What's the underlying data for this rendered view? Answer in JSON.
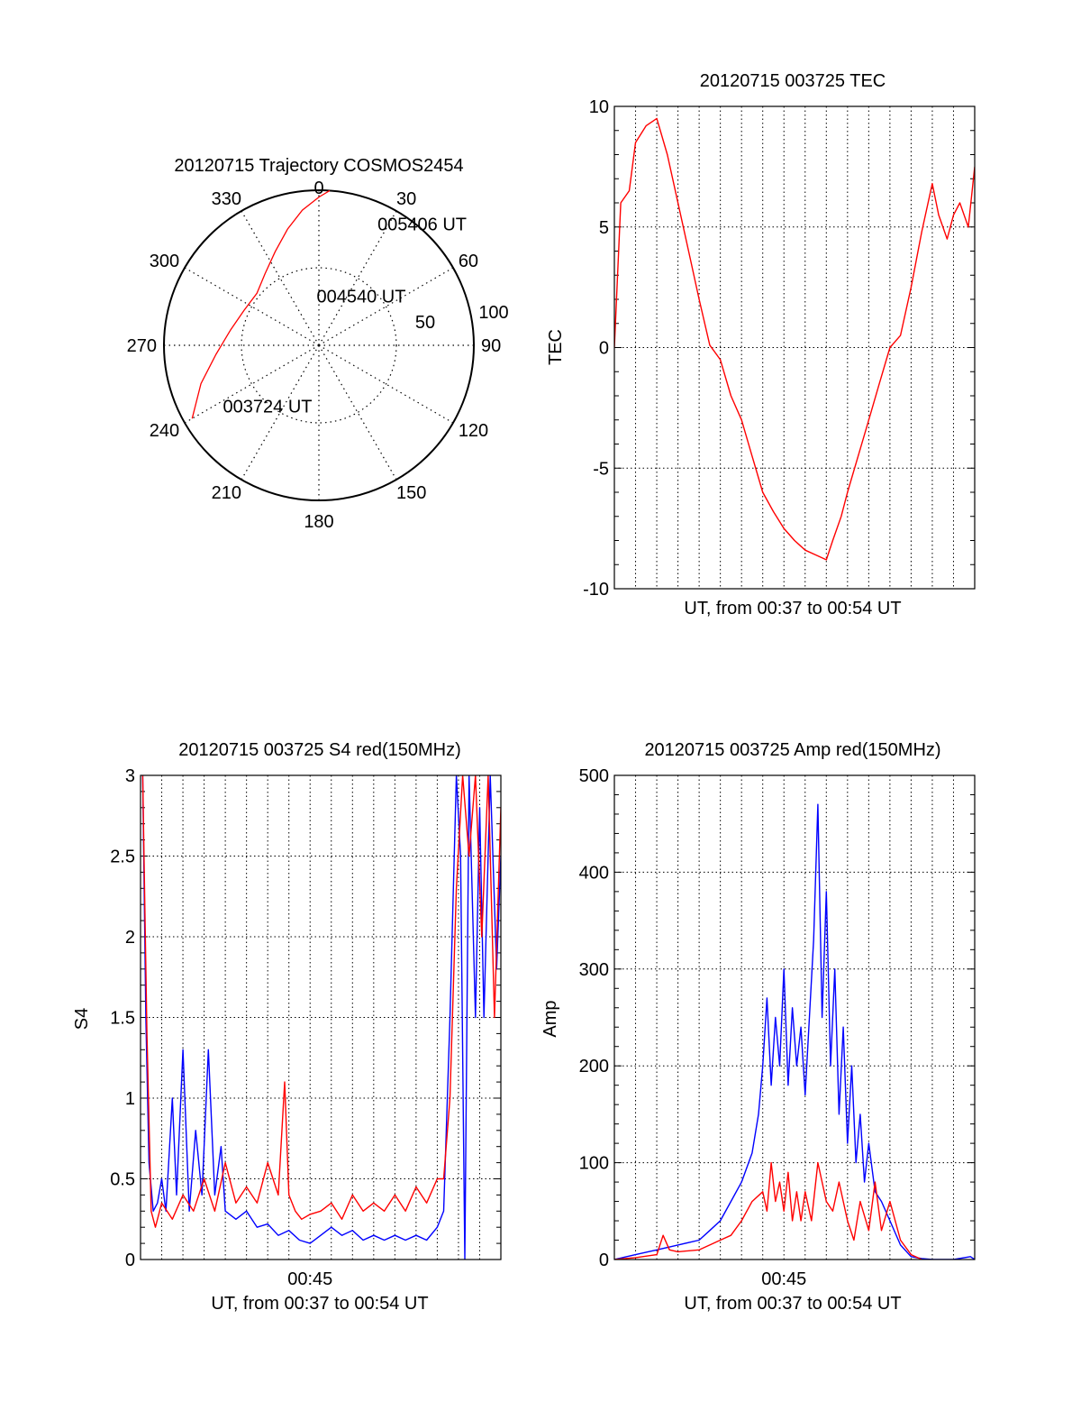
{
  "colors": {
    "red": "#ff0000",
    "blue": "#0000ff",
    "axis": "#000000",
    "grid": "#000000"
  },
  "chart_data": [
    {
      "type": "polar",
      "title": "20120715 Trajectory COSMOS2454",
      "angle_labels": [
        "0",
        "30",
        "60",
        "90",
        "120",
        "150",
        "180",
        "210",
        "240",
        "270",
        "300",
        "330"
      ],
      "radius_labels": [
        "50",
        "100"
      ],
      "rlim": [
        0,
        90
      ],
      "grid": true,
      "series": [
        {
          "color": "red",
          "points": [
            {
              "az": 240,
              "r": 85
            },
            {
              "az": 252,
              "r": 72
            },
            {
              "az": 265,
              "r": 60
            },
            {
              "az": 280,
              "r": 52
            },
            {
              "az": 295,
              "r": 48
            },
            {
              "az": 310,
              "r": 47
            },
            {
              "az": 323,
              "r": 52
            },
            {
              "az": 335,
              "r": 60
            },
            {
              "az": 345,
              "r": 70
            },
            {
              "az": 353,
              "r": 79
            },
            {
              "az": 360,
              "r": 86
            },
            {
              "az": 364,
              "r": 90
            }
          ]
        }
      ],
      "annotations": [
        {
          "text": "005406 UT",
          "az": 27,
          "r": 75
        },
        {
          "text": "004540 UT",
          "az": 357,
          "r": 25
        },
        {
          "text": "003724 UT",
          "az": 235,
          "r": 68
        }
      ]
    },
    {
      "type": "line",
      "title": "20120715 003725 TEC",
      "xlabel": "UT, from 00:37 to 00:54 UT",
      "ylabel": "TEC",
      "xlim": [
        0,
        17
      ],
      "ylim": [
        -10,
        10
      ],
      "yticks": [
        "10",
        "5",
        "0",
        "-5",
        "-10"
      ],
      "xticks": [],
      "grid": true,
      "series": [
        {
          "color": "red",
          "x": [
            0,
            0.3,
            0.7,
            1.0,
            1.5,
            2.0,
            2.5,
            3.0,
            3.5,
            4.0,
            4.5,
            5.0,
            5.5,
            6.0,
            6.5,
            7.0,
            7.5,
            8.0,
            8.5,
            9.0,
            9.5,
            10.0,
            10.3,
            10.7,
            11.0,
            11.5,
            12.0,
            12.5,
            13.0,
            13.5,
            14.0,
            14.5,
            15.0,
            15.3,
            15.7,
            16.0,
            16.3,
            16.7,
            17.0
          ],
          "y": [
            0,
            6.0,
            6.5,
            8.5,
            9.2,
            9.5,
            8.0,
            6.0,
            4.0,
            2.0,
            0.1,
            -0.5,
            -2.0,
            -3.0,
            -4.5,
            -6.0,
            -6.8,
            -7.5,
            -8.0,
            -8.4,
            -8.6,
            -8.8,
            -8.0,
            -7.0,
            -6.0,
            -4.5,
            -3.0,
            -1.5,
            0.0,
            0.5,
            2.5,
            4.8,
            6.8,
            5.5,
            4.5,
            5.5,
            6.0,
            5.0,
            7.5
          ]
        }
      ]
    },
    {
      "type": "line",
      "title": "20120715 003725 S4 red(150MHz)",
      "xlabel": "UT, from 00:37 to 00:54 UT",
      "ylabel": "S4",
      "xlim": [
        0,
        17
      ],
      "ylim": [
        0,
        3
      ],
      "yticks": [
        "3",
        "2.5",
        "2",
        "1.5",
        "1",
        "0.5",
        "0"
      ],
      "xticks": [
        {
          "value": 8,
          "label": "00:45"
        }
      ],
      "grid": true,
      "series": [
        {
          "color": "blue",
          "x": [
            0.1,
            0.25,
            0.4,
            0.6,
            0.8,
            1.0,
            1.2,
            1.5,
            1.7,
            2.0,
            2.3,
            2.6,
            2.9,
            3.2,
            3.5,
            3.8,
            4.0,
            4.5,
            5.0,
            5.5,
            6.0,
            6.5,
            7.0,
            7.5,
            8.0,
            8.5,
            9.0,
            9.5,
            10.0,
            10.5,
            11.0,
            11.5,
            12.0,
            12.5,
            13.0,
            13.5,
            14.0,
            14.3,
            14.6,
            14.9,
            15.1,
            15.3,
            15.5,
            15.8,
            16.0,
            16.2,
            16.5,
            16.8,
            17.0
          ],
          "y": [
            3.0,
            1.5,
            0.6,
            0.3,
            0.35,
            0.5,
            0.3,
            1.0,
            0.4,
            1.3,
            0.3,
            0.8,
            0.4,
            1.3,
            0.4,
            0.7,
            0.3,
            0.25,
            0.3,
            0.2,
            0.22,
            0.15,
            0.18,
            0.12,
            0.1,
            0.15,
            0.2,
            0.15,
            0.18,
            0.12,
            0.15,
            0.12,
            0.15,
            0.12,
            0.15,
            0.12,
            0.2,
            0.3,
            1.5,
            3.0,
            2.5,
            0.0,
            3.0,
            1.5,
            2.8,
            1.5,
            3.0,
            1.8,
            2.5
          ]
        },
        {
          "color": "red",
          "x": [
            0.1,
            0.3,
            0.5,
            0.7,
            1.0,
            1.5,
            2.0,
            2.5,
            3.0,
            3.5,
            4.0,
            4.5,
            5.0,
            5.5,
            6.0,
            6.5,
            6.8,
            7.0,
            7.3,
            7.6,
            8.0,
            8.5,
            9.0,
            9.5,
            10.0,
            10.5,
            11.0,
            11.5,
            12.0,
            12.5,
            13.0,
            13.5,
            14.0,
            14.3,
            14.6,
            14.9,
            15.2,
            15.5,
            15.8,
            16.1,
            16.4,
            16.7,
            17.0
          ],
          "y": [
            3.0,
            1.4,
            0.3,
            0.2,
            0.35,
            0.25,
            0.4,
            0.3,
            0.5,
            0.3,
            0.6,
            0.35,
            0.45,
            0.35,
            0.6,
            0.4,
            1.1,
            0.4,
            0.3,
            0.25,
            0.28,
            0.3,
            0.35,
            0.25,
            0.4,
            0.3,
            0.35,
            0.3,
            0.4,
            0.3,
            0.45,
            0.35,
            0.5,
            0.5,
            1.0,
            2.3,
            3.0,
            2.5,
            3.0,
            2.0,
            3.0,
            1.5,
            2.8
          ]
        }
      ]
    },
    {
      "type": "line",
      "title": "20120715 003725 Amp red(150MHz)",
      "xlabel": "UT, from 00:37 to 00:54 UT",
      "ylabel": "Amp",
      "xlim": [
        0,
        17
      ],
      "ylim": [
        0,
        500
      ],
      "yticks": [
        "500",
        "400",
        "300",
        "200",
        "100",
        "0"
      ],
      "xticks": [
        {
          "value": 8,
          "label": "00:45"
        }
      ],
      "grid": true,
      "series": [
        {
          "color": "blue",
          "x": [
            0,
            1.0,
            2.0,
            3.0,
            4.0,
            4.5,
            5.0,
            5.5,
            6.0,
            6.5,
            6.8,
            7.0,
            7.2,
            7.4,
            7.6,
            7.8,
            8.0,
            8.2,
            8.4,
            8.6,
            8.8,
            9.0,
            9.2,
            9.4,
            9.6,
            9.8,
            10.0,
            10.2,
            10.4,
            10.6,
            10.8,
            11.0,
            11.2,
            11.4,
            11.6,
            11.8,
            12.0,
            12.3,
            12.6,
            13.0,
            13.5,
            14.0,
            14.5,
            15.0,
            16.0,
            16.8,
            17.0
          ],
          "y": [
            0,
            5,
            10,
            15,
            20,
            30,
            40,
            60,
            80,
            110,
            150,
            200,
            270,
            180,
            250,
            200,
            300,
            180,
            260,
            200,
            240,
            170,
            250,
            330,
            470,
            250,
            380,
            200,
            300,
            150,
            240,
            120,
            200,
            100,
            150,
            80,
            120,
            70,
            60,
            40,
            15,
            3,
            1,
            0,
            0,
            3,
            0
          ]
        },
        {
          "color": "red",
          "x": [
            0,
            1.0,
            2.0,
            2.3,
            2.6,
            3.0,
            4.0,
            4.5,
            5.0,
            5.5,
            6.0,
            6.5,
            7.0,
            7.2,
            7.4,
            7.6,
            7.8,
            8.0,
            8.2,
            8.4,
            8.6,
            8.8,
            9.0,
            9.3,
            9.6,
            10.0,
            10.3,
            10.6,
            11.0,
            11.3,
            11.6,
            12.0,
            12.3,
            12.6,
            13.0,
            13.5,
            14.0,
            14.5
          ],
          "y": [
            0,
            2,
            5,
            25,
            10,
            8,
            10,
            15,
            20,
            25,
            40,
            60,
            70,
            50,
            100,
            60,
            80,
            50,
            90,
            40,
            70,
            40,
            70,
            40,
            100,
            60,
            50,
            80,
            40,
            20,
            60,
            30,
            80,
            30,
            60,
            20,
            5,
            0
          ]
        }
      ]
    }
  ]
}
